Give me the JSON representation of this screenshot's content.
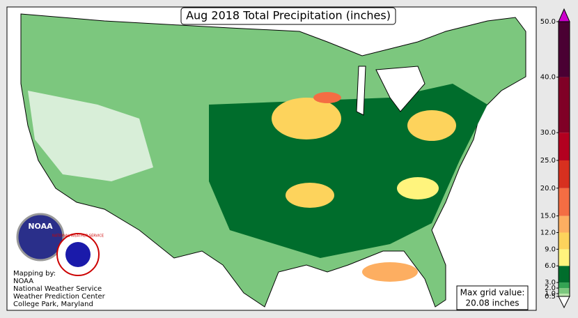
{
  "title": "Aug 2018 Total Precipitation (inches)",
  "credits": [
    "Mapping by:",
    "NOAA",
    "National Weather Service",
    "Weather Prediction Center",
    "College Park, Maryland"
  ],
  "max_value_box": [
    "Max grid value:",
    "20.08 inches"
  ],
  "logos": {
    "noaa": "NOAA",
    "nws": "NATIONAL WEATHER SERVICE"
  },
  "colorbar": {
    "lim": [
      0,
      50
    ],
    "ticks": [
      {
        "value": 0.5,
        "label": "0.5"
      },
      {
        "value": 1,
        "label": "1.0"
      },
      {
        "value": 2,
        "label": "2.0"
      },
      {
        "value": 3,
        "label": "3.0"
      },
      {
        "value": 6,
        "label": "6.0"
      },
      {
        "value": 9,
        "label": "9.0"
      },
      {
        "value": 12,
        "label": "12.0"
      },
      {
        "value": 15,
        "label": "15.0"
      },
      {
        "value": 20,
        "label": "20.0"
      },
      {
        "value": 25,
        "label": "25.0"
      },
      {
        "value": 30,
        "label": "30.0"
      },
      {
        "value": 40,
        "label": "40.0"
      },
      {
        "value": 50,
        "label": "50.0"
      }
    ],
    "colors": [
      "#b9e4ab",
      "#7cc77e",
      "#34a353",
      "#006d2c",
      "#fff47d",
      "#fdd35c",
      "#fdae61",
      "#f46d43",
      "#d7301f",
      "#b30020",
      "#800026",
      "#4a0033"
    ],
    "over_color": "#cc00cc",
    "under_color": "#ffffff"
  }
}
